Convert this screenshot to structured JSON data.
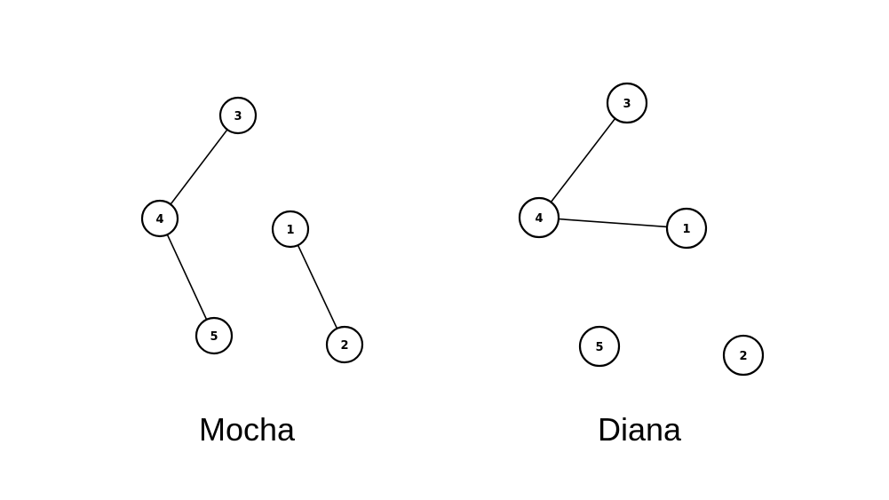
{
  "graphs": [
    {
      "name": "Mocha",
      "nodes": [
        {
          "id": "3",
          "label": "3"
        },
        {
          "id": "4",
          "label": "4"
        },
        {
          "id": "5",
          "label": "5"
        },
        {
          "id": "1",
          "label": "1"
        },
        {
          "id": "2",
          "label": "2"
        }
      ],
      "edges": [
        [
          "3",
          "4"
        ],
        [
          "4",
          "5"
        ],
        [
          "1",
          "2"
        ]
      ]
    },
    {
      "name": "Diana",
      "nodes": [
        {
          "id": "3",
          "label": "3"
        },
        {
          "id": "4",
          "label": "4"
        },
        {
          "id": "1",
          "label": "1"
        },
        {
          "id": "5",
          "label": "5"
        },
        {
          "id": "2",
          "label": "2"
        }
      ],
      "edges": [
        [
          "3",
          "4"
        ],
        [
          "4",
          "1"
        ]
      ]
    }
  ],
  "colors": {
    "stroke": "#000000",
    "fill": "#ffffff"
  }
}
